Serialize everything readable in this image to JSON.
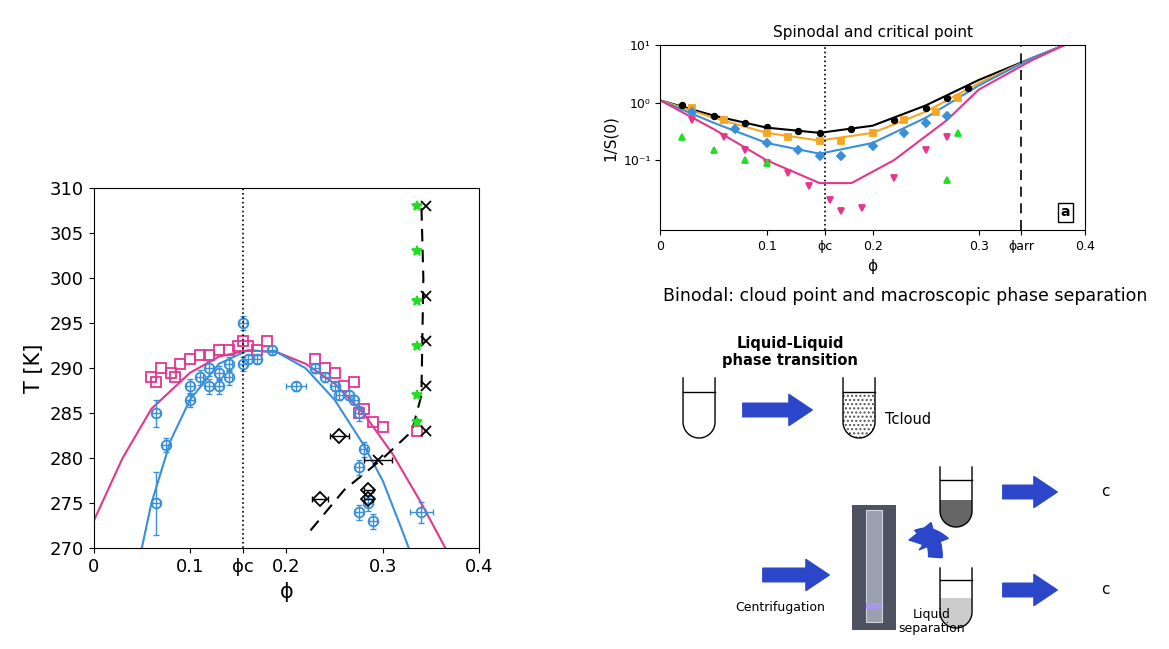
{
  "chart_data": [
    {
      "type": "scatter",
      "xlabel": "ϕ",
      "ylabel": "T [K]",
      "xlim": [
        0,
        0.4
      ],
      "ylim": [
        270,
        310
      ],
      "xticks": [
        0,
        0.1,
        {
          "value": 0.155,
          "label": "ϕc"
        },
        0.2,
        0.3,
        0.4
      ],
      "yticks": [
        270,
        275,
        280,
        285,
        290,
        295,
        300,
        305,
        310
      ],
      "vlines": [
        {
          "x": 0.155,
          "line_style": "dotted",
          "color": "#000000"
        }
      ],
      "series": [
        {
          "type": "line",
          "color": "#e6358c",
          "line_style": "solid",
          "x": [
            0,
            0.03,
            0.06,
            0.1,
            0.13,
            0.16,
            0.19,
            0.22,
            0.25,
            0.28,
            0.31,
            0.34,
            0.365
          ],
          "values": [
            273,
            280,
            285.5,
            289.5,
            291.3,
            292,
            291.8,
            290.5,
            288.3,
            285,
            280.5,
            275,
            270
          ]
        },
        {
          "type": "line",
          "color": "#3a8fd9",
          "line_style": "solid",
          "x": [
            0.05,
            0.06,
            0.08,
            0.1,
            0.13,
            0.16,
            0.19,
            0.22,
            0.25,
            0.28,
            0.3,
            0.32,
            0.327
          ],
          "values": [
            270,
            275,
            282,
            286.5,
            290.5,
            292,
            291.8,
            290,
            286.5,
            281.5,
            277.5,
            272,
            270
          ]
        },
        {
          "type": "line",
          "color": "#000000",
          "line_style": "dashed",
          "x": [
            0.225,
            0.26,
            0.3,
            0.33,
            0.34,
            0.342,
            0.34
          ],
          "values": [
            272,
            276.5,
            280,
            283,
            287,
            300,
            308
          ]
        },
        {
          "type": "scatter",
          "color": "#e6358c",
          "marker": "open_square",
          "x": [
            0.06,
            0.065,
            0.07,
            0.08,
            0.085,
            0.09,
            0.1,
            0.11,
            0.12,
            0.13,
            0.14,
            0.15,
            0.155,
            0.16,
            0.17,
            0.18,
            0.23,
            0.24,
            0.25,
            0.26,
            0.27,
            0.275,
            0.28,
            0.29,
            0.3,
            0.335
          ],
          "values": [
            289,
            288.5,
            290,
            289.5,
            289,
            290.5,
            291,
            291.5,
            291.5,
            292,
            292,
            292.5,
            293,
            292.5,
            292,
            293,
            291,
            290,
            289.5,
            288,
            288.5,
            285,
            285.5,
            284,
            283.5,
            283
          ]
        },
        {
          "type": "scatter",
          "color": "#3a8fd9",
          "marker": "open_circle",
          "x": [
            0.065,
            0.065,
            0.075,
            0.1,
            0.1,
            0.11,
            0.12,
            0.12,
            0.13,
            0.13,
            0.14,
            0.14,
            0.155,
            0.155,
            0.16,
            0.17,
            0.185,
            0.21,
            0.23,
            0.24,
            0.25,
            0.255,
            0.265,
            0.27,
            0.275,
            0.28,
            0.275,
            0.275,
            0.29,
            0.285,
            0.34
          ],
          "values": [
            275,
            285,
            281.5,
            286.5,
            288,
            289,
            290,
            288,
            288,
            289.5,
            290.5,
            289,
            295,
            290.5,
            291,
            291,
            292,
            288,
            290,
            289,
            288,
            287,
            287,
            286.5,
            285,
            281,
            279,
            274,
            273,
            275,
            274
          ],
          "xerr": [
            0.004,
            0.004,
            0.004,
            0.004,
            0.004,
            0.004,
            0.004,
            0.004,
            0.004,
            0.004,
            0.004,
            0.004,
            0.004,
            0.004,
            0.004,
            0.004,
            0.004,
            0.01,
            0.004,
            0.004,
            0.004,
            0.004,
            0.004,
            0.004,
            0.004,
            0.004,
            0.004,
            0.004,
            0.004,
            0.004,
            0.012
          ],
          "yerr": [
            3.5,
            1.5,
            0.8,
            0.8,
            0.8,
            0.8,
            0.8,
            0.8,
            0.8,
            0.8,
            0.8,
            0.8,
            0.8,
            0.8,
            0.5,
            0.5,
            0.5,
            0.5,
            0.5,
            0.5,
            0.5,
            0.5,
            0.5,
            0.5,
            0.8,
            0.8,
            0.8,
            0.8,
            0.8,
            0.8,
            1.2
          ]
        },
        {
          "type": "scatter",
          "color": "#000000",
          "marker": "open_diamond",
          "x": [
            0.255,
            0.235,
            0.285,
            0.285
          ],
          "values": [
            282.5,
            275.5,
            276.5,
            275.5
          ],
          "xerr": [
            0.01,
            0.008,
            0.005,
            0.005
          ]
        },
        {
          "type": "scatter",
          "color": "#000000",
          "marker": "x",
          "x": [
            0.295
          ],
          "values": [
            279.8
          ],
          "xerr": [
            0.015
          ]
        },
        {
          "type": "scatter",
          "color": "#000000",
          "marker": "x",
          "x": [
            0.345,
            0.345,
            0.345,
            0.345,
            0.345
          ],
          "values": [
            308,
            298,
            293,
            288,
            283
          ]
        },
        {
          "type": "scatter",
          "color": "#22dd22",
          "marker": "asterisk",
          "x": [
            0.335,
            0.335,
            0.335,
            0.335,
            0.335,
            0.335
          ],
          "values": [
            308,
            303,
            297.5,
            292.5,
            287,
            284
          ]
        }
      ]
    },
    {
      "type": "scatter",
      "title": "Spinodal and critical point",
      "xlabel": "ϕ",
      "ylabel": "1/S(0)",
      "log": "y",
      "xlim": [
        0,
        0.4
      ],
      "ylim": [
        0.006,
        10
      ],
      "xticks": [
        0,
        0.1,
        {
          "value": 0.155,
          "label": "ϕc"
        },
        0.2,
        0.3,
        {
          "value": 0.34,
          "label": "ϕarr"
        },
        0.4
      ],
      "yticks": [
        {
          "value": 0.1,
          "label": "10⁻¹"
        },
        {
          "value": 1,
          "label": "10⁰"
        },
        {
          "value": 10,
          "label": "10¹"
        }
      ],
      "annotations": [
        "a"
      ],
      "vlines": [
        {
          "x": 0.155,
          "line_style": "dotted",
          "color": "#000000"
        },
        {
          "x": 0.34,
          "line_style": "dashed",
          "color": "#000000"
        }
      ],
      "series": [
        {
          "type": "line",
          "color": "#000000",
          "line_style": "solid",
          "x": [
            0,
            0.05,
            0.1,
            0.15,
            0.2,
            0.25,
            0.3,
            0.35,
            0.38
          ],
          "values": [
            1.1,
            0.6,
            0.37,
            0.3,
            0.4,
            0.9,
            2.5,
            6,
            10
          ]
        },
        {
          "type": "line",
          "color": "#f5a623",
          "line_style": "solid",
          "x": [
            0,
            0.05,
            0.1,
            0.15,
            0.2,
            0.25,
            0.3,
            0.35,
            0.38
          ],
          "values": [
            1.1,
            0.55,
            0.3,
            0.22,
            0.3,
            0.7,
            2.2,
            6,
            10
          ]
        },
        {
          "type": "line",
          "color": "#3a8fd9",
          "line_style": "solid",
          "x": [
            0,
            0.05,
            0.1,
            0.15,
            0.2,
            0.25,
            0.3,
            0.35,
            0.38
          ],
          "values": [
            1.1,
            0.45,
            0.2,
            0.13,
            0.2,
            0.55,
            2,
            6,
            10
          ]
        },
        {
          "type": "line",
          "color": "#e6358c",
          "line_style": "solid",
          "x": [
            0,
            0.05,
            0.1,
            0.15,
            0.18,
            0.22,
            0.27,
            0.3,
            0.35,
            0.38
          ],
          "values": [
            1.1,
            0.35,
            0.1,
            0.04,
            0.04,
            0.1,
            0.5,
            1.7,
            5.5,
            10
          ]
        },
        {
          "type": "scatter",
          "color": "#000000",
          "marker": "circle",
          "x": [
            0.02,
            0.05,
            0.08,
            0.1,
            0.13,
            0.15,
            0.18,
            0.22,
            0.25,
            0.27,
            0.29
          ],
          "values": [
            0.9,
            0.6,
            0.45,
            0.38,
            0.32,
            0.3,
            0.35,
            0.5,
            0.8,
            1.2,
            1.8
          ]
        },
        {
          "type": "scatter",
          "color": "#f5a623",
          "marker": "square",
          "x": [
            0.03,
            0.06,
            0.1,
            0.12,
            0.15,
            0.17,
            0.2,
            0.23,
            0.26,
            0.28
          ],
          "values": [
            0.8,
            0.5,
            0.3,
            0.25,
            0.22,
            0.22,
            0.3,
            0.5,
            0.7,
            1.2
          ]
        },
        {
          "type": "scatter",
          "color": "#3a8fd9",
          "marker": "diamond",
          "x": [
            0.03,
            0.07,
            0.1,
            0.13,
            0.15,
            0.17,
            0.2,
            0.23,
            0.25,
            0.27
          ],
          "values": [
            0.7,
            0.35,
            0.2,
            0.15,
            0.12,
            0.12,
            0.18,
            0.3,
            0.45,
            0.6
          ]
        },
        {
          "type": "scatter",
          "color": "#e6358c",
          "marker": "triangle_down",
          "x": [
            0.03,
            0.06,
            0.08,
            0.1,
            0.12,
            0.14,
            0.16,
            0.17,
            0.19,
            0.22,
            0.25,
            0.27
          ],
          "values": [
            0.5,
            0.25,
            0.15,
            0.09,
            0.06,
            0.035,
            0.02,
            0.013,
            0.015,
            0.05,
            0.15,
            0.25
          ]
        },
        {
          "type": "scatter",
          "color": "#22dd22",
          "marker": "triangle_up",
          "x": [
            0.02,
            0.05,
            0.08,
            0.1,
            0.27,
            0.28
          ],
          "values": [
            0.25,
            0.15,
            0.1,
            0.09,
            0.045,
            0.3
          ]
        }
      ]
    }
  ],
  "diagram": {
    "title": "Binodal: cloud point and macroscopic phase separation",
    "transition": "Liquid-Liquid\nphase transition",
    "cloud_point": "Tcloud",
    "centrifugation": "Centrifugation",
    "separation": "Liquid\nseparation",
    "dense_phase": "c",
    "dilute_phase": "c"
  }
}
